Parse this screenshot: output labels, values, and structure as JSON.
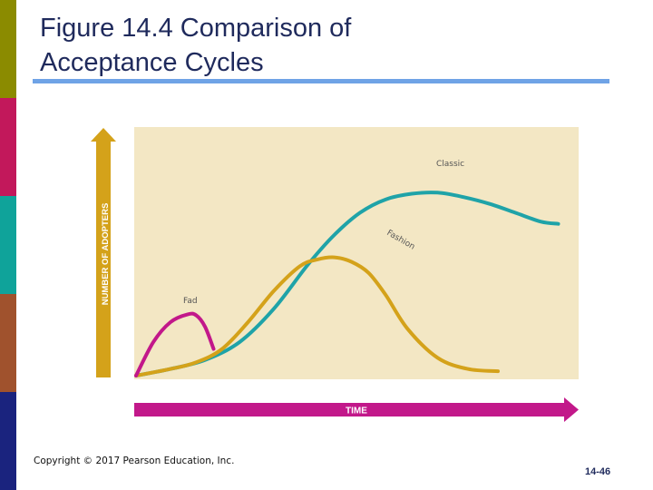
{
  "slide": {
    "title_line1": "Figure 14.4 Comparison of",
    "title_line2": "Acceptance Cycles",
    "copyright": "Copyright © 2017 Pearson Education, Inc.",
    "page_number": "14-46",
    "strip_colors": [
      "#8b8b00",
      "#c2185b",
      "#0fa39a",
      "#a0522d",
      "#1a237e"
    ],
    "title_rule_color": "#6fa3e6",
    "title_color": "#1f2a5c"
  },
  "chart_data": {
    "type": "line",
    "title": "",
    "xlabel": "TIME",
    "ylabel": "NUMBER OF ADOPTERS",
    "xlim": [
      0,
      100
    ],
    "ylim": [
      0,
      100
    ],
    "grid": false,
    "plot_background": "#f3e7c4",
    "series": [
      {
        "name": "Fad",
        "color": "#c2188a",
        "x": [
          0,
          4,
          8,
          12,
          14,
          16,
          18
        ],
        "y": [
          0,
          15,
          24,
          27.5,
          27,
          22,
          12
        ]
      },
      {
        "name": "Fashion",
        "color": "#d4a21a",
        "x": [
          0,
          8,
          14,
          20,
          26,
          32,
          38,
          42,
          46,
          50,
          54,
          58,
          63,
          70,
          77,
          84
        ],
        "y": [
          0,
          3,
          6,
          12,
          24,
          38,
          49,
          52,
          53,
          51,
          46,
          36,
          21,
          8,
          3,
          2
        ]
      },
      {
        "name": "Classic",
        "color": "#1fa3a8",
        "x": [
          0,
          8,
          16,
          24,
          32,
          40,
          46,
          52,
          58,
          64,
          70,
          76,
          82,
          88,
          94,
          98
        ],
        "y": [
          0,
          3,
          7,
          15,
          30,
          50,
          63,
          73,
          79,
          81.5,
          82,
          80,
          77,
          73,
          69,
          68
        ]
      }
    ],
    "annotations": [
      {
        "series": "Fad",
        "text": "Fad"
      },
      {
        "series": "Fashion",
        "text": "Fashion"
      },
      {
        "series": "Classic",
        "text": "Classic"
      }
    ]
  }
}
